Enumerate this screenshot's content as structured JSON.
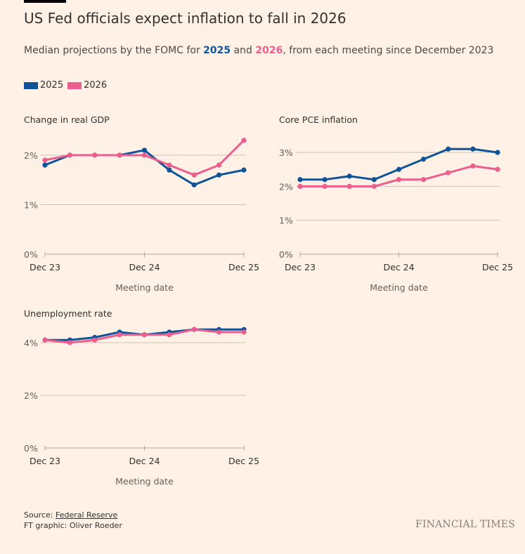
{
  "header": {
    "title": "US Fed officials expect inflation to fall in 2026",
    "subtitle_pre": "Median projections by the FOMC for ",
    "subtitle_y1": "2025",
    "subtitle_mid": " and ",
    "subtitle_y2": "2026",
    "subtitle_post": ", from each meeting since December 2023"
  },
  "legend": [
    {
      "label": "2025",
      "color": "#0f5499"
    },
    {
      "label": "2026",
      "color": "#eb5e8d"
    }
  ],
  "chart_data": [
    {
      "type": "line",
      "title": "Change in real GDP",
      "xlabel": "Meeting date",
      "ylabel": "",
      "x_ticks": [
        "Dec 23",
        "Dec 24",
        "Dec 25"
      ],
      "y_ticks": [
        "0%",
        "1%",
        "2%"
      ],
      "y_tick_values": [
        0,
        1,
        2
      ],
      "grid": true,
      "series": [
        {
          "name": "2025",
          "color": "#0f5499",
          "values": [
            1.8,
            2.0,
            2.0,
            2.0,
            2.1,
            1.7,
            1.4,
            1.6,
            1.7
          ]
        },
        {
          "name": "2026",
          "color": "#eb5e8d",
          "values": [
            1.9,
            2.0,
            2.0,
            2.0,
            2.0,
            1.8,
            1.6,
            1.8,
            2.3
          ]
        }
      ]
    },
    {
      "type": "line",
      "title": "Core PCE inflation",
      "xlabel": "Meeting date",
      "ylabel": "",
      "x_ticks": [
        "Dec 23",
        "Dec 24",
        "Dec 25"
      ],
      "y_ticks": [
        "0%",
        "1%",
        "2%",
        "3%"
      ],
      "y_tick_values": [
        0,
        1,
        2,
        3
      ],
      "grid": true,
      "series": [
        {
          "name": "2025",
          "color": "#0f5499",
          "values": [
            2.2,
            2.2,
            2.3,
            2.2,
            2.5,
            2.8,
            3.1,
            3.1,
            3.0
          ]
        },
        {
          "name": "2026",
          "color": "#eb5e8d",
          "values": [
            2.0,
            2.0,
            2.0,
            2.0,
            2.2,
            2.2,
            2.4,
            2.6,
            2.5
          ]
        }
      ]
    },
    {
      "type": "line",
      "title": "Unemployment rate",
      "xlabel": "Meeting date",
      "ylabel": "",
      "x_ticks": [
        "Dec 23",
        "Dec 24",
        "Dec 25"
      ],
      "y_ticks": [
        "0%",
        "2%",
        "4%"
      ],
      "y_tick_values": [
        0,
        2,
        4
      ],
      "grid": true,
      "series": [
        {
          "name": "2025",
          "color": "#0f5499",
          "values": [
            4.1,
            4.1,
            4.2,
            4.4,
            4.3,
            4.4,
            4.5,
            4.5,
            4.5
          ]
        },
        {
          "name": "2026",
          "color": "#eb5e8d",
          "values": [
            4.1,
            4.0,
            4.1,
            4.3,
            4.3,
            4.3,
            4.5,
            4.4,
            4.4
          ]
        }
      ]
    }
  ],
  "footer": {
    "source_label": "Source: ",
    "source_link": "Federal Reserve",
    "credit": "FT graphic: Oliver Roeder",
    "brand": "FINANCIAL TIMES"
  }
}
